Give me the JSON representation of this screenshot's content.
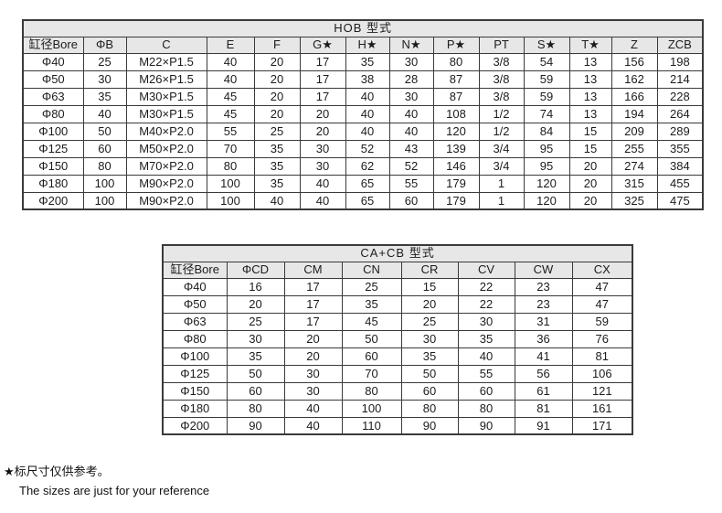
{
  "page": {
    "background": "#ffffff",
    "header_bg": "#e7e7e7",
    "border_color": "#3a3a3a",
    "text_color": "#1c1c1c"
  },
  "hob_table": {
    "title": "HOB 型式",
    "columns": [
      "缸径Bore",
      "ΦB",
      "C",
      "E",
      "F",
      "G★",
      "H★",
      "N★",
      "P★",
      "PT",
      "S★",
      "T★",
      "Z",
      "ZCB"
    ],
    "rows": [
      [
        "Φ40",
        "25",
        "M22×P1.5",
        "40",
        "20",
        "17",
        "35",
        "30",
        "80",
        "3/8",
        "54",
        "13",
        "156",
        "198"
      ],
      [
        "Φ50",
        "30",
        "M26×P1.5",
        "40",
        "20",
        "17",
        "38",
        "28",
        "87",
        "3/8",
        "59",
        "13",
        "162",
        "214"
      ],
      [
        "Φ63",
        "35",
        "M30×P1.5",
        "45",
        "20",
        "17",
        "40",
        "30",
        "87",
        "3/8",
        "59",
        "13",
        "166",
        "228"
      ],
      [
        "Φ80",
        "40",
        "M30×P1.5",
        "45",
        "20",
        "20",
        "40",
        "40",
        "108",
        "1/2",
        "74",
        "13",
        "194",
        "264"
      ],
      [
        "Φ100",
        "50",
        "M40×P2.0",
        "55",
        "25",
        "20",
        "40",
        "40",
        "120",
        "1/2",
        "84",
        "15",
        "209",
        "289"
      ],
      [
        "Φ125",
        "60",
        "M50×P2.0",
        "70",
        "35",
        "30",
        "52",
        "43",
        "139",
        "3/4",
        "95",
        "15",
        "255",
        "355"
      ],
      [
        "Φ150",
        "80",
        "M70×P2.0",
        "80",
        "35",
        "30",
        "62",
        "52",
        "146",
        "3/4",
        "95",
        "20",
        "274",
        "384"
      ],
      [
        "Φ180",
        "100",
        "M90×P2.0",
        "100",
        "35",
        "40",
        "65",
        "55",
        "179",
        "1",
        "120",
        "20",
        "315",
        "455"
      ],
      [
        "Φ200",
        "100",
        "M90×P2.0",
        "100",
        "40",
        "40",
        "65",
        "60",
        "179",
        "1",
        "120",
        "20",
        "325",
        "475"
      ]
    ]
  },
  "cacb_table": {
    "title": "CA+CB 型式",
    "columns": [
      "缸径Bore",
      "ΦCD",
      "CM",
      "CN",
      "CR",
      "CV",
      "CW",
      "CX"
    ],
    "rows": [
      [
        "Φ40",
        "16",
        "17",
        "25",
        "15",
        "22",
        "23",
        "47"
      ],
      [
        "Φ50",
        "20",
        "17",
        "35",
        "20",
        "22",
        "23",
        "47"
      ],
      [
        "Φ63",
        "25",
        "17",
        "45",
        "25",
        "30",
        "31",
        "59"
      ],
      [
        "Φ80",
        "30",
        "20",
        "50",
        "30",
        "35",
        "36",
        "76"
      ],
      [
        "Φ100",
        "35",
        "20",
        "60",
        "35",
        "40",
        "41",
        "81"
      ],
      [
        "Φ125",
        "50",
        "30",
        "70",
        "50",
        "55",
        "56",
        "106"
      ],
      [
        "Φ150",
        "60",
        "30",
        "80",
        "60",
        "60",
        "61",
        "121"
      ],
      [
        "Φ180",
        "80",
        "40",
        "100",
        "80",
        "80",
        "81",
        "161"
      ],
      [
        "Φ200",
        "90",
        "40",
        "110",
        "90",
        "90",
        "91",
        "171"
      ]
    ]
  },
  "footnote": {
    "zh": "★标尺寸仅供参考。",
    "en": "The sizes are just for your reference"
  }
}
